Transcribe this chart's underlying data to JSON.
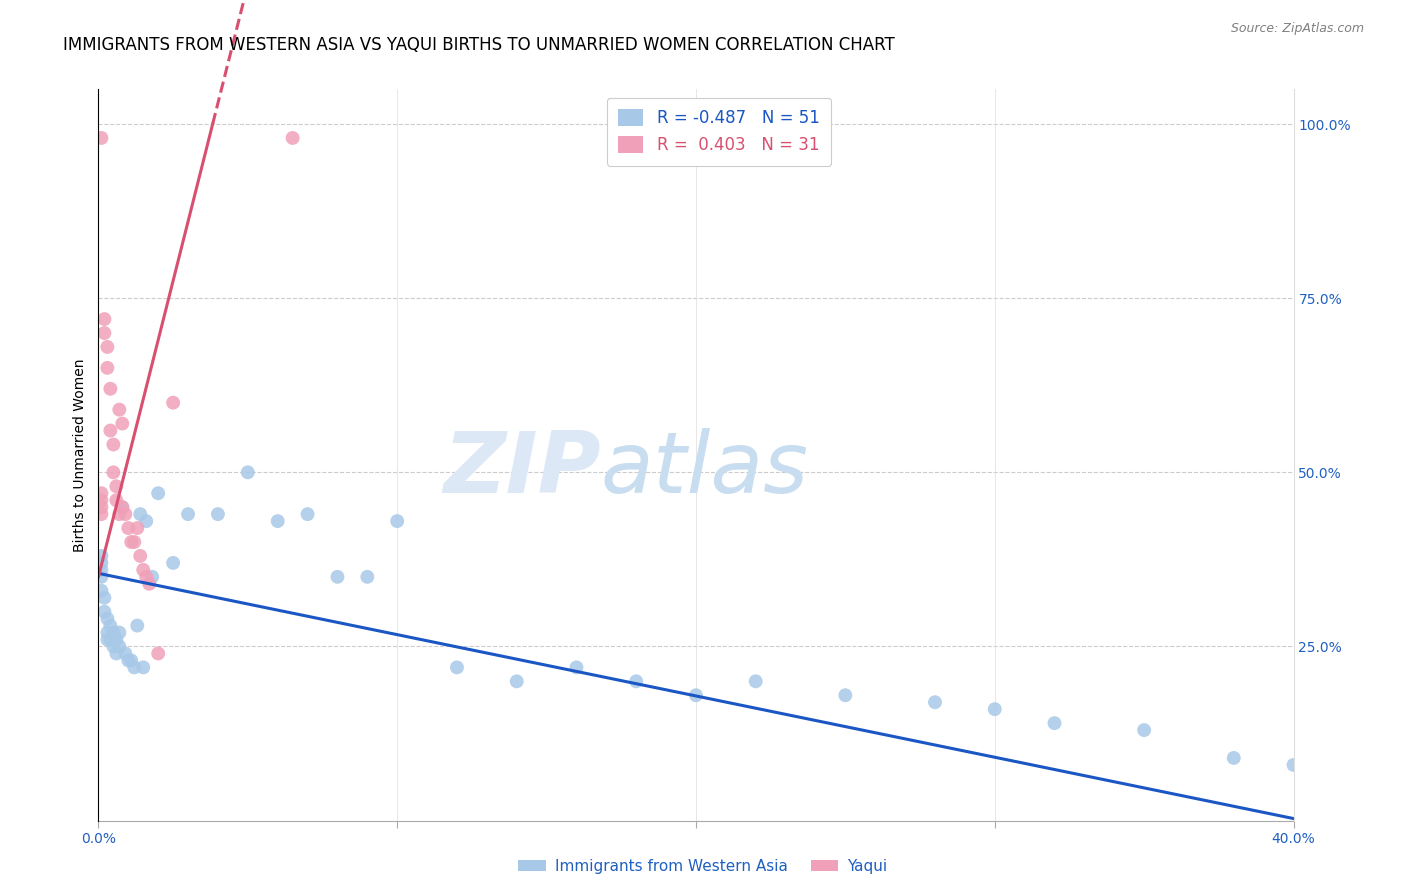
{
  "title": "IMMIGRANTS FROM WESTERN ASIA VS YAQUI BIRTHS TO UNMARRIED WOMEN CORRELATION CHART",
  "source": "Source: ZipAtlas.com",
  "ylabel": "Births to Unmarried Women",
  "legend_blue_label": "Immigrants from Western Asia",
  "legend_pink_label": "Yaqui",
  "legend_blue_r": "-0.487",
  "legend_blue_n": "51",
  "legend_pink_r": "0.403",
  "legend_pink_n": "31",
  "blue_color": "#a8c8e8",
  "pink_color": "#f0a0b8",
  "blue_line_color": "#1a56c4",
  "pink_line_color": "#d85070",
  "watermark_zip": "ZIP",
  "watermark_atlas": "atlas",
  "watermark_color": "#dce8f5",
  "blue_scatter_x": [
    0.001,
    0.001,
    0.001,
    0.001,
    0.002,
    0.002,
    0.003,
    0.003,
    0.003,
    0.004,
    0.004,
    0.005,
    0.005,
    0.006,
    0.006,
    0.007,
    0.007,
    0.008,
    0.009,
    0.01,
    0.011,
    0.012,
    0.013,
    0.014,
    0.015,
    0.016,
    0.018,
    0.02,
    0.025,
    0.03,
    0.04,
    0.05,
    0.06,
    0.07,
    0.08,
    0.09,
    0.1,
    0.12,
    0.14,
    0.16,
    0.18,
    0.2,
    0.22,
    0.25,
    0.28,
    0.3,
    0.32,
    0.35,
    0.38,
    0.4,
    0.001
  ],
  "blue_scatter_y": [
    0.38,
    0.36,
    0.35,
    0.33,
    0.32,
    0.3,
    0.29,
    0.27,
    0.26,
    0.28,
    0.26,
    0.27,
    0.25,
    0.26,
    0.24,
    0.25,
    0.27,
    0.45,
    0.24,
    0.23,
    0.23,
    0.22,
    0.28,
    0.44,
    0.22,
    0.43,
    0.35,
    0.47,
    0.37,
    0.44,
    0.44,
    0.5,
    0.43,
    0.44,
    0.35,
    0.35,
    0.43,
    0.22,
    0.2,
    0.22,
    0.2,
    0.18,
    0.2,
    0.18,
    0.17,
    0.16,
    0.14,
    0.13,
    0.09,
    0.08,
    0.37
  ],
  "pink_scatter_x": [
    0.001,
    0.001,
    0.001,
    0.001,
    0.001,
    0.002,
    0.002,
    0.003,
    0.003,
    0.004,
    0.004,
    0.005,
    0.005,
    0.006,
    0.006,
    0.007,
    0.007,
    0.008,
    0.008,
    0.009,
    0.01,
    0.011,
    0.012,
    0.013,
    0.014,
    0.015,
    0.016,
    0.017,
    0.02,
    0.025,
    0.065
  ],
  "pink_scatter_y": [
    0.98,
    0.47,
    0.46,
    0.45,
    0.44,
    0.72,
    0.7,
    0.68,
    0.65,
    0.62,
    0.56,
    0.54,
    0.5,
    0.48,
    0.46,
    0.44,
    0.59,
    0.45,
    0.57,
    0.44,
    0.42,
    0.4,
    0.4,
    0.42,
    0.38,
    0.36,
    0.35,
    0.34,
    0.24,
    0.6,
    0.98
  ],
  "xlim": [
    0.0,
    0.4
  ],
  "ylim": [
    0.0,
    1.05
  ],
  "right_yticks": [
    1.0,
    0.75,
    0.5,
    0.25
  ],
  "right_yticklabels": [
    "100.0%",
    "75.0%",
    "50.0%",
    "25.0%"
  ],
  "xtick_positions": [
    0.0,
    0.4
  ],
  "xtick_labels": [
    "0.0%",
    "40.0%"
  ],
  "xtick_minor": [
    0.1,
    0.2,
    0.3
  ],
  "grid_color": "#cccccc",
  "title_fontsize": 12,
  "axis_label_fontsize": 10,
  "tick_fontsize": 10,
  "scatter_size": 100,
  "blue_line_intercept": 0.355,
  "blue_line_slope": -0.88,
  "pink_line_intercept": 0.35,
  "pink_line_slope": 17.0
}
